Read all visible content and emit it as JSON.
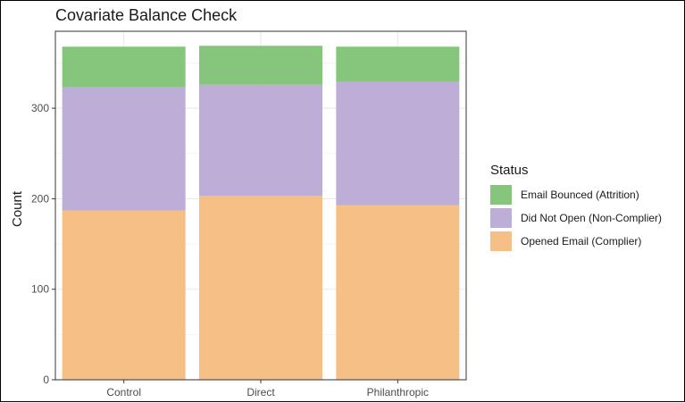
{
  "chart_data": {
    "type": "bar",
    "stacked": true,
    "title": "Covariate Balance Check",
    "xlabel": "",
    "ylabel": "Count",
    "categories": [
      "Control",
      "Direct",
      "Philanthropic"
    ],
    "series": [
      {
        "name": "Opened Email (Complier)",
        "color": "#F6BF85",
        "values": [
          187,
          203,
          193
        ]
      },
      {
        "name": "Did Not Open (Non-Complier)",
        "color": "#BCAED6",
        "values": [
          136,
          123,
          136
        ]
      },
      {
        "name": "Email Bounced (Attrition)",
        "color": "#86C67C",
        "values": [
          45,
          43,
          39
        ]
      }
    ],
    "ylim": [
      0,
      385
    ],
    "yticks": [
      0,
      100,
      200,
      300
    ],
    "grid": true,
    "legend": {
      "title": "Status",
      "placement": "right",
      "order": [
        "Email Bounced (Attrition)",
        "Did Not Open (Non-Complier)",
        "Opened Email (Complier)"
      ]
    }
  }
}
